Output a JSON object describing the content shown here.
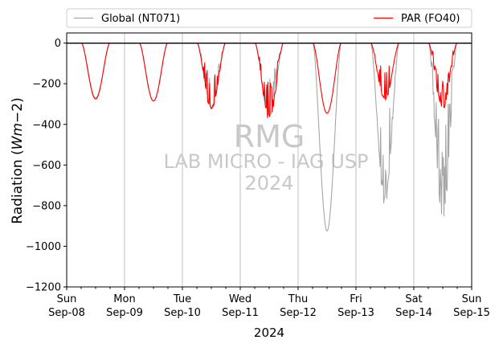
{
  "chart_data": {
    "type": "line",
    "ylabel": "Radiation ($Wm{-2}$)",
    "xlabel": "2024",
    "ylim": [
      -1200,
      50
    ],
    "yticks": [
      0,
      -200,
      -400,
      -600,
      -800,
      -1000,
      -1200
    ],
    "ytick_labels": [
      "0",
      "−200",
      "−400",
      "−600",
      "−800",
      "−1000",
      "−1200"
    ],
    "x_range_days": [
      "2024-09-08",
      "2024-09-15"
    ],
    "xticks": [
      {
        "day": "Sun",
        "date": "Sep-08"
      },
      {
        "day": "Mon",
        "date": "Sep-09"
      },
      {
        "day": "Tue",
        "date": "Sep-10"
      },
      {
        "day": "Wed",
        "date": "Sep-11"
      },
      {
        "day": "Thu",
        "date": "Sep-12"
      },
      {
        "day": "Fri",
        "date": "Sep-13"
      },
      {
        "day": "Sat",
        "date": "Sep-14"
      },
      {
        "day": "Sun",
        "date": "Sep-15"
      }
    ],
    "grid": "x-major-vertical",
    "zero_line": true,
    "legend_placement": "above-plot",
    "watermark": {
      "line1": "RMG",
      "line2": "LAB MICRO - IAG USP",
      "line3": "2024"
    },
    "series": [
      {
        "name": "Global (NT071)",
        "color": "#a6a6a6",
        "daily_minimum": [
          {
            "date": "2024-09-08",
            "min": -270
          },
          {
            "date": "2024-09-09",
            "min": -285
          },
          {
            "date": "2024-09-10",
            "min": -330
          },
          {
            "date": "2024-09-11",
            "min": -370
          },
          {
            "date": "2024-09-12",
            "min": -925
          },
          {
            "date": "2024-09-13",
            "min": -800
          },
          {
            "date": "2024-09-14",
            "min": -885
          }
        ]
      },
      {
        "name": "PAR (FO40)",
        "color": "#ff0000",
        "daily_minimum": [
          {
            "date": "2024-09-08",
            "min": -275
          },
          {
            "date": "2024-09-09",
            "min": -285
          },
          {
            "date": "2024-09-10",
            "min": -335
          },
          {
            "date": "2024-09-11",
            "min": -380
          },
          {
            "date": "2024-09-12",
            "min": -345
          },
          {
            "date": "2024-09-13",
            "min": -285
          },
          {
            "date": "2024-09-14",
            "min": -330
          }
        ]
      }
    ]
  }
}
